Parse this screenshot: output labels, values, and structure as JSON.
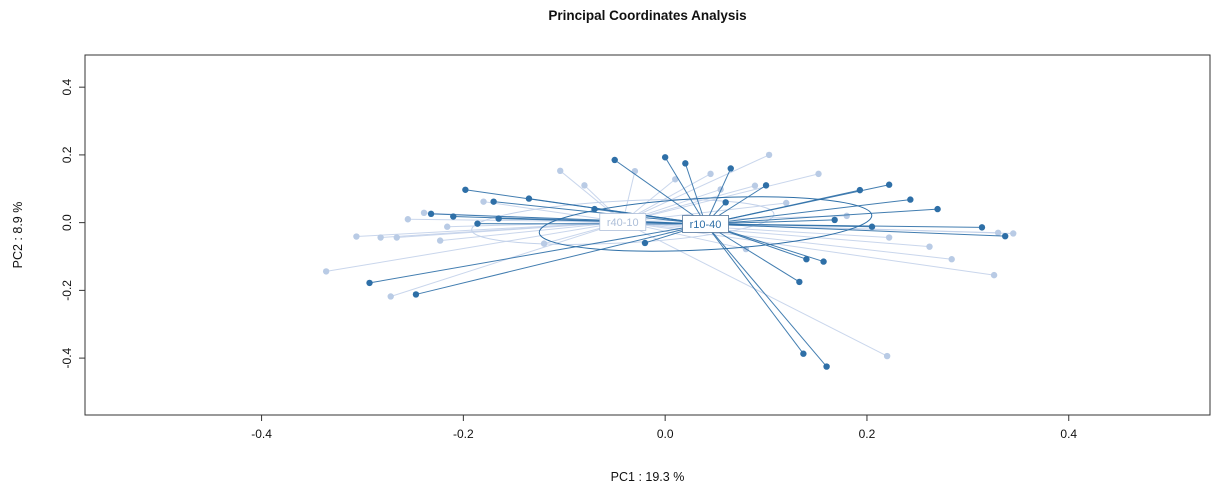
{
  "chart_data": {
    "type": "scatter",
    "title": "Principal Coordinates Analysis",
    "xlabel": "PC1 :  19.3 %",
    "ylabel": "PC2 :  8.9 %",
    "xlim": [
      -0.575,
      0.54
    ],
    "ylim": [
      -0.568,
      0.495
    ],
    "grid": false,
    "legend": "none",
    "frame_color": "#333333",
    "xticks": [
      {
        "v": -0.4,
        "label": "-0.4"
      },
      {
        "v": -0.2,
        "label": "-0.2"
      },
      {
        "v": 0.0,
        "label": "0.0"
      },
      {
        "v": 0.2,
        "label": "0.2"
      },
      {
        "v": 0.4,
        "label": "0.4"
      }
    ],
    "yticks": [
      {
        "v": -0.4,
        "label": "-0.4"
      },
      {
        "v": -0.2,
        "label": "-0.2"
      },
      {
        "v": 0.0,
        "label": "0.0"
      },
      {
        "v": 0.2,
        "label": "0.2"
      },
      {
        "v": 0.4,
        "label": "0.4"
      }
    ],
    "groups": [
      {
        "name": "r40-10",
        "color": "#b9cbe5",
        "line_color": "#c3d2ea",
        "box_color": "#aebfd9",
        "label_color": "#aebfd9",
        "centroid": [
          -0.042,
          0.002
        ],
        "ellipse": {
          "cx": -0.042,
          "cy": 0.002,
          "rx": 0.15,
          "ry": 0.062,
          "angle": -3
        },
        "points": [
          [
            -0.104,
            0.153
          ],
          [
            -0.03,
            0.152
          ],
          [
            0.103,
            0.2
          ],
          [
            0.045,
            0.144
          ],
          [
            0.089,
            0.109
          ],
          [
            0.152,
            0.144
          ],
          [
            0.01,
            0.128
          ],
          [
            -0.08,
            0.11
          ],
          [
            -0.18,
            0.062
          ],
          [
            -0.239,
            0.029
          ],
          [
            -0.255,
            0.01
          ],
          [
            -0.306,
            -0.041
          ],
          [
            -0.282,
            -0.044
          ],
          [
            -0.266,
            -0.044
          ],
          [
            -0.223,
            -0.053
          ],
          [
            -0.216,
            -0.012
          ],
          [
            -0.336,
            -0.144
          ],
          [
            -0.272,
            -0.218
          ],
          [
            -0.12,
            -0.062
          ],
          [
            0.08,
            -0.078
          ],
          [
            0.12,
            0.058
          ],
          [
            0.18,
            0.02
          ],
          [
            0.222,
            -0.044
          ],
          [
            0.262,
            -0.071
          ],
          [
            0.284,
            -0.108
          ],
          [
            0.326,
            -0.155
          ],
          [
            0.33,
            -0.03
          ],
          [
            0.345,
            -0.032
          ],
          [
            0.22,
            -0.394
          ],
          [
            0.055,
            0.098
          ]
        ]
      },
      {
        "name": "r10-40",
        "color": "#2e6fa7",
        "line_color": "#2e6fa7",
        "box_color": "#55769b",
        "label_color": "#2e6fa7",
        "centroid": [
          0.04,
          -0.004
        ],
        "ellipse": {
          "cx": 0.04,
          "cy": -0.004,
          "rx": 0.165,
          "ry": 0.076,
          "angle": -3
        },
        "points": [
          [
            -0.05,
            0.185
          ],
          [
            0.0,
            0.193
          ],
          [
            0.02,
            0.175
          ],
          [
            0.065,
            0.16
          ],
          [
            -0.198,
            0.097
          ],
          [
            -0.17,
            0.062
          ],
          [
            -0.135,
            0.071
          ],
          [
            0.1,
            0.11
          ],
          [
            0.193,
            0.096
          ],
          [
            0.222,
            0.112
          ],
          [
            0.243,
            0.068
          ],
          [
            0.27,
            0.04
          ],
          [
            -0.232,
            0.026
          ],
          [
            -0.21,
            0.018
          ],
          [
            -0.186,
            -0.003
          ],
          [
            -0.165,
            0.012
          ],
          [
            0.168,
            0.008
          ],
          [
            0.205,
            -0.012
          ],
          [
            0.314,
            -0.014
          ],
          [
            0.337,
            -0.04
          ],
          [
            0.14,
            -0.108
          ],
          [
            0.157,
            -0.115
          ],
          [
            0.133,
            -0.175
          ],
          [
            -0.293,
            -0.178
          ],
          [
            -0.247,
            -0.212
          ],
          [
            0.137,
            -0.387
          ],
          [
            0.16,
            -0.425
          ],
          [
            -0.07,
            0.04
          ],
          [
            0.06,
            0.06
          ],
          [
            -0.02,
            -0.06
          ]
        ]
      }
    ]
  }
}
